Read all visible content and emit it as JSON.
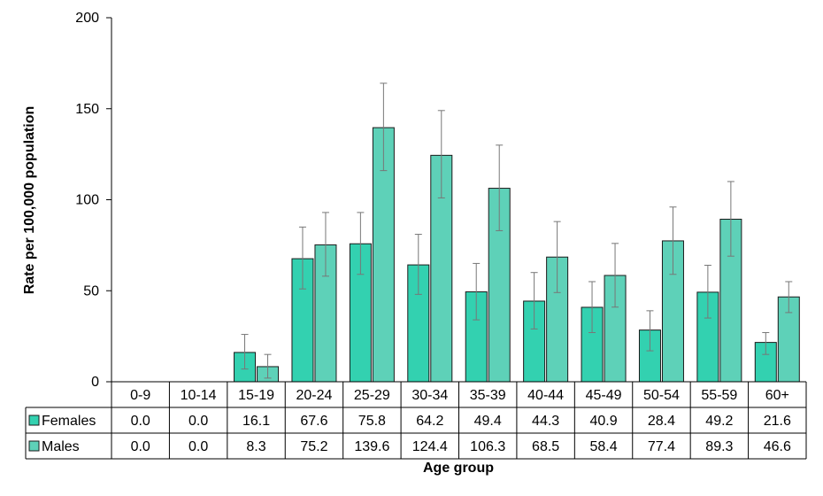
{
  "chart_data": {
    "type": "bar",
    "xlabel": "Age group",
    "ylabel": "Rate per 100,000 population",
    "ylim": [
      0,
      200
    ],
    "yticks": [
      0,
      50,
      100,
      150,
      200
    ],
    "categories": [
      "0-9",
      "10-14",
      "15-19",
      "20-24",
      "25-29",
      "30-34",
      "35-39",
      "40-44",
      "45-49",
      "50-54",
      "55-59",
      "60+"
    ],
    "series": [
      {
        "name": "Females",
        "color": "#33d1b0",
        "values": [
          0.0,
          0.0,
          16.1,
          67.6,
          75.8,
          64.2,
          49.4,
          44.3,
          40.9,
          28.4,
          49.2,
          21.6
        ],
        "labels": [
          "0.0",
          "0.0",
          "16.1",
          "67.6",
          "75.8",
          "64.2",
          "49.4",
          "44.3",
          "40.9",
          "28.4",
          "49.2",
          "21.6"
        ],
        "error_low": [
          0,
          0,
          7,
          51,
          59,
          48,
          34,
          29,
          27,
          17,
          35,
          15
        ],
        "error_high": [
          0,
          0,
          26,
          85,
          93,
          81,
          65,
          60,
          55,
          39,
          64,
          27
        ]
      },
      {
        "name": "Males",
        "color": "#5ed1b8",
        "values": [
          0.0,
          0.0,
          8.3,
          75.2,
          139.6,
          124.4,
          106.3,
          68.5,
          58.4,
          77.4,
          89.3,
          46.6
        ],
        "labels": [
          "0.0",
          "0.0",
          "8.3",
          "75.2",
          "139.6",
          "124.4",
          "106.3",
          "68.5",
          "58.4",
          "77.4",
          "89.3",
          "46.6"
        ],
        "error_low": [
          0,
          0,
          2,
          58,
          116,
          101,
          83,
          49,
          41,
          59,
          69,
          38
        ],
        "error_high": [
          0,
          0,
          15,
          93,
          164,
          149,
          130,
          88,
          76,
          96,
          110,
          55
        ]
      }
    ],
    "legend": "data-table-rows",
    "grid": false
  }
}
